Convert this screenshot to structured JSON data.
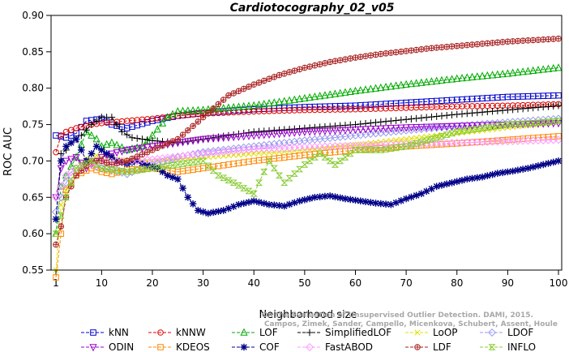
{
  "chart_data": {
    "type": "line",
    "title": "Cardiotocography_02_v05",
    "xlabel": "Neighborhood size",
    "ylabel": "ROC AUC",
    "xlim": [
      1,
      100
    ],
    "ylim": [
      0.55,
      0.9
    ],
    "x_ticks": [
      1,
      10,
      20,
      30,
      40,
      50,
      60,
      70,
      80,
      90,
      100
    ],
    "y_ticks": [
      "0.55",
      "0.60",
      "0.65",
      "0.70",
      "0.75",
      "0.80",
      "0.85",
      "0.90"
    ],
    "grid": false,
    "legend_position": "bottom",
    "series": [
      {
        "name": "kNN",
        "color": "#0000cc",
        "marker": "square",
        "line": "dash",
        "points": [
          [
            1,
            0.735
          ],
          [
            3,
            0.732
          ],
          [
            5,
            0.738
          ],
          [
            7,
            0.755
          ],
          [
            10,
            0.758
          ],
          [
            12,
            0.75
          ],
          [
            15,
            0.745
          ],
          [
            20,
            0.755
          ],
          [
            25,
            0.762
          ],
          [
            30,
            0.766
          ],
          [
            40,
            0.771
          ],
          [
            50,
            0.774
          ],
          [
            60,
            0.776
          ],
          [
            70,
            0.78
          ],
          [
            80,
            0.784
          ],
          [
            90,
            0.788
          ],
          [
            100,
            0.79
          ]
        ]
      },
      {
        "name": "kNNW",
        "color": "#dd0000",
        "marker": "circle",
        "line": "dash",
        "points": [
          [
            1,
            0.712
          ],
          [
            2,
            0.735
          ],
          [
            3,
            0.74
          ],
          [
            5,
            0.745
          ],
          [
            8,
            0.75
          ],
          [
            10,
            0.752
          ],
          [
            15,
            0.755
          ],
          [
            20,
            0.758
          ],
          [
            25,
            0.762
          ],
          [
            30,
            0.765
          ],
          [
            40,
            0.768
          ],
          [
            50,
            0.77
          ],
          [
            60,
            0.771
          ],
          [
            70,
            0.773
          ],
          [
            80,
            0.775
          ],
          [
            90,
            0.776
          ],
          [
            100,
            0.778
          ]
        ]
      },
      {
        "name": "LOF",
        "color": "#00aa00",
        "marker": "triangle",
        "line": "dash",
        "points": [
          [
            1,
            0.6
          ],
          [
            2,
            0.665
          ],
          [
            3,
            0.68
          ],
          [
            5,
            0.705
          ],
          [
            7,
            0.74
          ],
          [
            9,
            0.73
          ],
          [
            10,
            0.72
          ],
          [
            12,
            0.725
          ],
          [
            15,
            0.715
          ],
          [
            18,
            0.72
          ],
          [
            20,
            0.735
          ],
          [
            23,
            0.76
          ],
          [
            25,
            0.768
          ],
          [
            30,
            0.77
          ],
          [
            40,
            0.776
          ],
          [
            50,
            0.786
          ],
          [
            60,
            0.796
          ],
          [
            70,
            0.805
          ],
          [
            80,
            0.813
          ],
          [
            90,
            0.82
          ],
          [
            100,
            0.828
          ]
        ]
      },
      {
        "name": "SimplifiedLOF",
        "color": "#000000",
        "marker": "plus",
        "line": "dash",
        "points": [
          [
            1,
            0.62
          ],
          [
            2,
            0.71
          ],
          [
            3,
            0.715
          ],
          [
            4,
            0.725
          ],
          [
            6,
            0.735
          ],
          [
            8,
            0.75
          ],
          [
            10,
            0.76
          ],
          [
            12,
            0.76
          ],
          [
            14,
            0.74
          ],
          [
            16,
            0.732
          ],
          [
            20,
            0.728
          ],
          [
            25,
            0.725
          ],
          [
            30,
            0.73
          ],
          [
            35,
            0.735
          ],
          [
            40,
            0.74
          ],
          [
            50,
            0.745
          ],
          [
            60,
            0.75
          ],
          [
            70,
            0.757
          ],
          [
            80,
            0.764
          ],
          [
            90,
            0.77
          ],
          [
            100,
            0.776
          ]
        ]
      },
      {
        "name": "LoOP",
        "color": "#e0e000",
        "marker": "x",
        "line": "dash",
        "points": [
          [
            1,
            0.55
          ],
          [
            2,
            0.64
          ],
          [
            3,
            0.66
          ],
          [
            5,
            0.69
          ],
          [
            8,
            0.71
          ],
          [
            10,
            0.705
          ],
          [
            15,
            0.7
          ],
          [
            20,
            0.7
          ],
          [
            30,
            0.705
          ],
          [
            40,
            0.71
          ],
          [
            50,
            0.715
          ],
          [
            60,
            0.722
          ],
          [
            70,
            0.73
          ],
          [
            80,
            0.738
          ],
          [
            90,
            0.746
          ],
          [
            100,
            0.754
          ]
        ]
      },
      {
        "name": "LDOF",
        "color": "#9999ee",
        "marker": "diamond",
        "line": "dash",
        "points": [
          [
            1,
            0.63
          ],
          [
            3,
            0.67
          ],
          [
            5,
            0.69
          ],
          [
            8,
            0.695
          ],
          [
            10,
            0.69
          ],
          [
            12,
            0.688
          ],
          [
            15,
            0.682
          ],
          [
            18,
            0.69
          ],
          [
            20,
            0.695
          ],
          [
            25,
            0.705
          ],
          [
            30,
            0.712
          ],
          [
            40,
            0.72
          ],
          [
            50,
            0.728
          ],
          [
            60,
            0.735
          ],
          [
            70,
            0.742
          ],
          [
            80,
            0.748
          ],
          [
            90,
            0.753
          ],
          [
            100,
            0.758
          ]
        ]
      },
      {
        "name": "ODIN",
        "color": "#9900cc",
        "marker": "triangle-down",
        "line": "dash",
        "points": [
          [
            1,
            0.65
          ],
          [
            2,
            0.69
          ],
          [
            3,
            0.7
          ],
          [
            5,
            0.705
          ],
          [
            7,
            0.69
          ],
          [
            9,
            0.7
          ],
          [
            10,
            0.705
          ],
          [
            12,
            0.71
          ],
          [
            15,
            0.715
          ],
          [
            20,
            0.72
          ],
          [
            25,
            0.725
          ],
          [
            30,
            0.73
          ],
          [
            40,
            0.735
          ],
          [
            50,
            0.74
          ],
          [
            60,
            0.743
          ],
          [
            70,
            0.746
          ],
          [
            80,
            0.748
          ],
          [
            90,
            0.75
          ],
          [
            100,
            0.752
          ]
        ]
      },
      {
        "name": "KDEOS",
        "color": "#ff8800",
        "marker": "square",
        "line": "dash",
        "points": [
          [
            1,
            0.54
          ],
          [
            2,
            0.6
          ],
          [
            3,
            0.66
          ],
          [
            5,
            0.68
          ],
          [
            8,
            0.69
          ],
          [
            10,
            0.685
          ],
          [
            12,
            0.682
          ],
          [
            15,
            0.688
          ],
          [
            20,
            0.69
          ],
          [
            25,
            0.685
          ],
          [
            30,
            0.69
          ],
          [
            40,
            0.7
          ],
          [
            50,
            0.708
          ],
          [
            60,
            0.715
          ],
          [
            70,
            0.72
          ],
          [
            80,
            0.724
          ],
          [
            90,
            0.729
          ],
          [
            100,
            0.734
          ]
        ]
      },
      {
        "name": "COF",
        "color": "#000088",
        "marker": "asterisk",
        "line": "dash",
        "points": [
          [
            1,
            0.62
          ],
          [
            2,
            0.7
          ],
          [
            3,
            0.72
          ],
          [
            5,
            0.73
          ],
          [
            7,
            0.7
          ],
          [
            9,
            0.72
          ],
          [
            11,
            0.71
          ],
          [
            13,
            0.7
          ],
          [
            15,
            0.696
          ],
          [
            17,
            0.7
          ],
          [
            19,
            0.694
          ],
          [
            21,
            0.69
          ],
          [
            23,
            0.68
          ],
          [
            25,
            0.675
          ],
          [
            27,
            0.65
          ],
          [
            29,
            0.632
          ],
          [
            31,
            0.628
          ],
          [
            34,
            0.632
          ],
          [
            37,
            0.64
          ],
          [
            40,
            0.645
          ],
          [
            43,
            0.64
          ],
          [
            46,
            0.638
          ],
          [
            49,
            0.645
          ],
          [
            52,
            0.65
          ],
          [
            55,
            0.652
          ],
          [
            58,
            0.648
          ],
          [
            61,
            0.645
          ],
          [
            64,
            0.642
          ],
          [
            67,
            0.64
          ],
          [
            70,
            0.648
          ],
          [
            73,
            0.655
          ],
          [
            76,
            0.665
          ],
          [
            79,
            0.67
          ],
          [
            82,
            0.675
          ],
          [
            85,
            0.678
          ],
          [
            88,
            0.683
          ],
          [
            91,
            0.686
          ],
          [
            94,
            0.69
          ],
          [
            97,
            0.695
          ],
          [
            100,
            0.7
          ]
        ]
      },
      {
        "name": "FastABOD",
        "color": "#ff99ff",
        "marker": "diamond",
        "line": "dash",
        "points": [
          [
            1,
            0.65
          ],
          [
            3,
            0.68
          ],
          [
            5,
            0.69
          ],
          [
            8,
            0.695
          ],
          [
            10,
            0.698
          ],
          [
            15,
            0.7
          ],
          [
            20,
            0.702
          ],
          [
            30,
            0.71
          ],
          [
            40,
            0.716
          ],
          [
            50,
            0.719
          ],
          [
            60,
            0.721
          ],
          [
            70,
            0.723
          ],
          [
            80,
            0.725
          ],
          [
            90,
            0.727
          ],
          [
            100,
            0.729
          ]
        ]
      },
      {
        "name": "LDF",
        "color": "#aa2222",
        "marker": "circle-plus",
        "line": "dash",
        "points": [
          [
            1,
            0.585
          ],
          [
            2,
            0.61
          ],
          [
            3,
            0.65
          ],
          [
            5,
            0.68
          ],
          [
            8,
            0.7
          ],
          [
            10,
            0.7
          ],
          [
            12,
            0.695
          ],
          [
            15,
            0.7
          ],
          [
            20,
            0.715
          ],
          [
            25,
            0.73
          ],
          [
            30,
            0.76
          ],
          [
            35,
            0.79
          ],
          [
            40,
            0.805
          ],
          [
            45,
            0.818
          ],
          [
            50,
            0.828
          ],
          [
            55,
            0.836
          ],
          [
            60,
            0.842
          ],
          [
            65,
            0.847
          ],
          [
            70,
            0.851
          ],
          [
            75,
            0.855
          ],
          [
            80,
            0.858
          ],
          [
            85,
            0.861
          ],
          [
            90,
            0.864
          ],
          [
            95,
            0.866
          ],
          [
            100,
            0.868
          ]
        ]
      },
      {
        "name": "INFLO",
        "color": "#88cc33",
        "marker": "hourglass",
        "line": "dash",
        "points": [
          [
            1,
            0.6
          ],
          [
            3,
            0.65
          ],
          [
            5,
            0.69
          ],
          [
            8,
            0.7
          ],
          [
            10,
            0.69
          ],
          [
            15,
            0.685
          ],
          [
            20,
            0.69
          ],
          [
            25,
            0.695
          ],
          [
            30,
            0.7
          ],
          [
            33,
            0.68
          ],
          [
            36,
            0.67
          ],
          [
            40,
            0.655
          ],
          [
            43,
            0.7
          ],
          [
            46,
            0.67
          ],
          [
            50,
            0.695
          ],
          [
            53,
            0.71
          ],
          [
            56,
            0.695
          ],
          [
            60,
            0.715
          ],
          [
            65,
            0.715
          ],
          [
            70,
            0.72
          ],
          [
            75,
            0.73
          ],
          [
            80,
            0.74
          ],
          [
            85,
            0.745
          ],
          [
            90,
            0.75
          ],
          [
            95,
            0.752
          ],
          [
            100,
            0.755
          ]
        ]
      }
    ]
  },
  "watermark": {
    "line1": "Campos, Zimek, Sander, Campello, Micenkova, Schubert, Assent, Houle",
    "line2": "On the Evaluation of Unsupervised Outlier Detection. DAMI, 2015."
  }
}
